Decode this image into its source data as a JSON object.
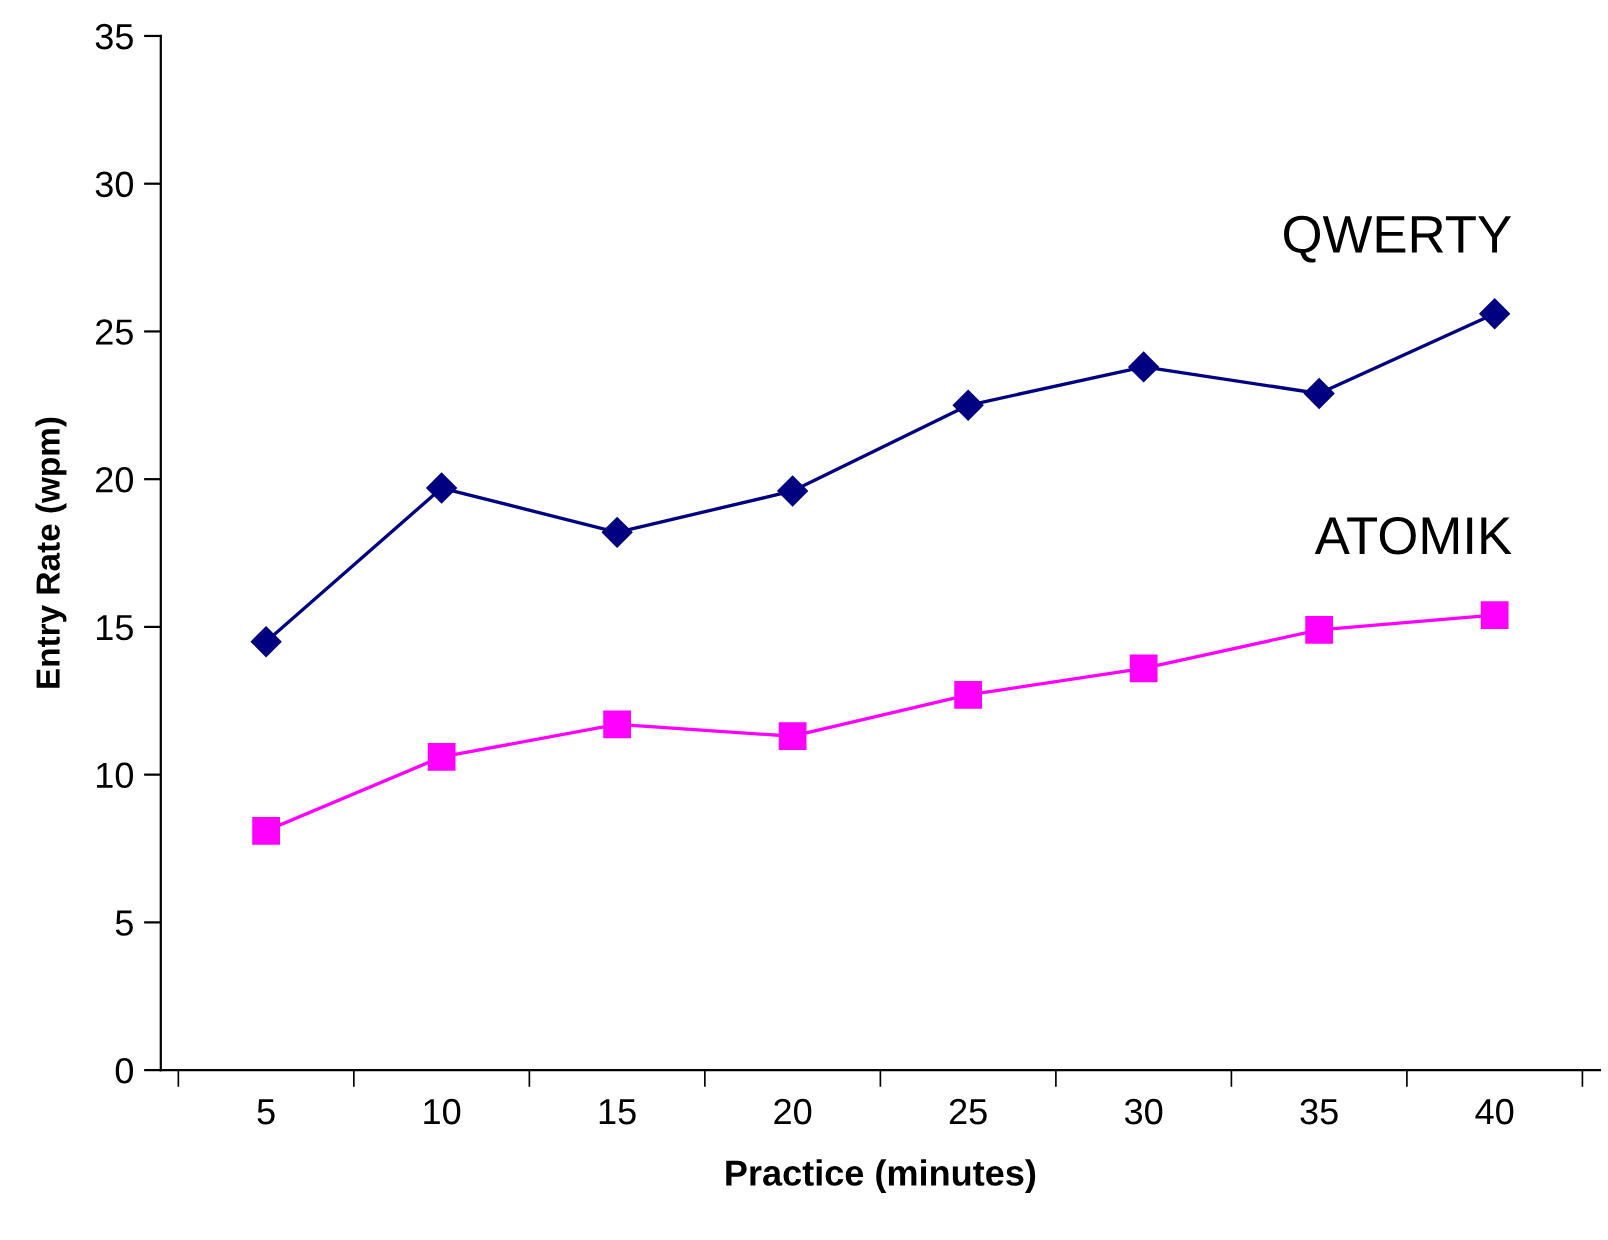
{
  "chart_data": {
    "type": "line",
    "xlabel": "Practice (minutes)",
    "ylabel": "Entry Rate (wpm)",
    "categories": [
      "5",
      "10",
      "15",
      "20",
      "25",
      "30",
      "35",
      "40"
    ],
    "series": [
      {
        "name": "QWERTY",
        "color": "#000080",
        "marker": "diamond",
        "values": [
          14.5,
          19.7,
          18.2,
          19.6,
          22.5,
          23.8,
          22.9,
          25.6
        ]
      },
      {
        "name": "ATOMIK",
        "color": "#ff00ff",
        "marker": "square",
        "values": [
          8.1,
          10.6,
          11.7,
          11.3,
          12.7,
          13.6,
          14.9,
          15.4
        ]
      }
    ],
    "ylim": [
      0,
      35
    ],
    "yticks": [
      0,
      5,
      10,
      15,
      20,
      25,
      30,
      35
    ],
    "grid": false,
    "legend": false
  }
}
